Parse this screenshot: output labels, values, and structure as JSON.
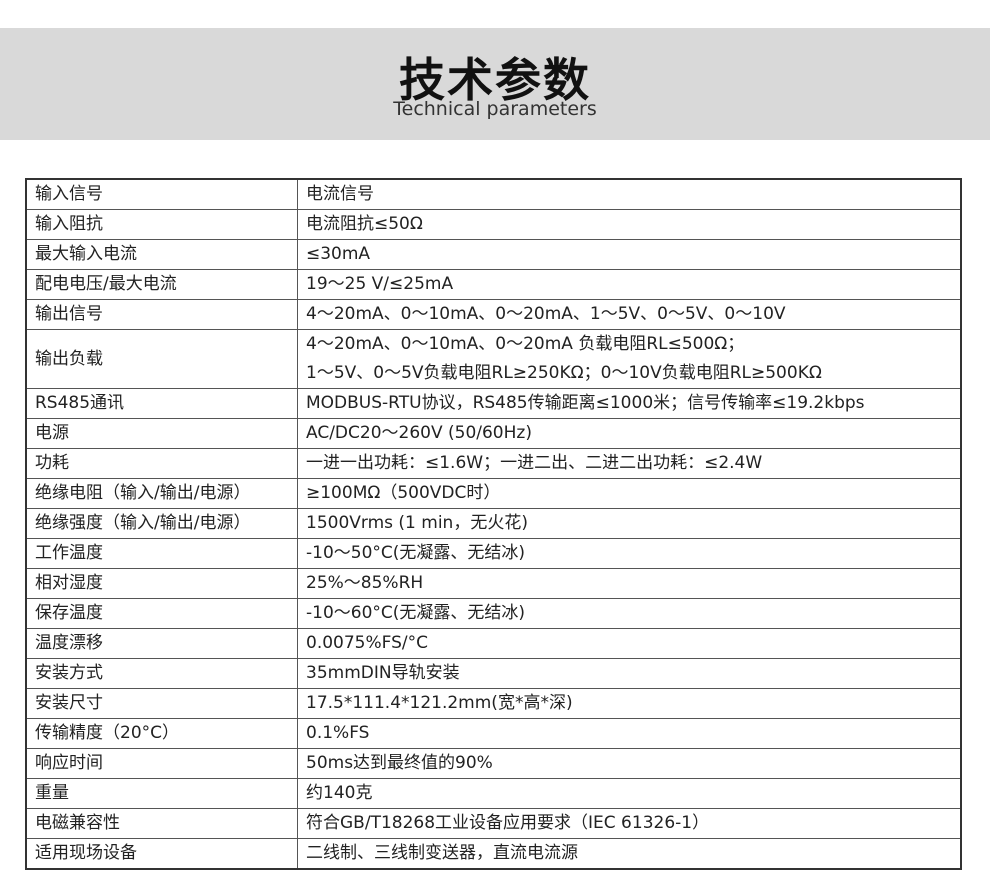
{
  "header": {
    "title": "技术参数",
    "subtitle": "Technical parameters"
  },
  "table": {
    "rows": [
      [
        "输入信号",
        "电流信号"
      ],
      [
        "输入阻抗",
        "电流阻抗≤50Ω"
      ],
      [
        "最大输入电流",
        "≤30mA"
      ],
      [
        "配电电压/最大电流",
        "19～25 V/≤25mA"
      ],
      [
        "输出信号",
        "4～20mA、0～10mA、0～20mA、1～5V、0～5V、0～10V"
      ],
      [
        "输出负载",
        [
          "4～20mA、0～10mA、0～20mA 负载电阻RL≤500Ω；",
          "1～5V、0～5V负载电阻RL≥250KΩ；0～10V负载电阻RL≥500KΩ"
        ]
      ],
      [
        "RS485通讯",
        "MODBUS-RTU协议，RS485传输距离≤1000米；信号传输率≤19.2kbps"
      ],
      [
        "电源",
        "AC/DC20～260V (50/60Hz)"
      ],
      [
        "功耗",
        "一进一出功耗：≤1.6W；一进二出、二进二出功耗：≤2.4W"
      ],
      [
        "绝缘电阻（输入/输出/电源）",
        "≥100MΩ（500VDC时）"
      ],
      [
        "绝缘强度（输入/输出/电源）",
        "1500Vrms (1 min，无火花)"
      ],
      [
        "工作温度",
        "-10～50°C(无凝露、无结冰)"
      ],
      [
        "相对湿度",
        "25%～85%RH"
      ],
      [
        "保存温度",
        "-10～60°C(无凝露、无结冰)"
      ],
      [
        "温度漂移",
        "0.0075%FS/°C"
      ],
      [
        "安装方式",
        "35mmDIN导轨安装"
      ],
      [
        "安装尺寸",
        "17.5*111.4*121.2mm(宽*高*深)"
      ],
      [
        "传输精度（20°C）",
        "0.1%FS"
      ],
      [
        "响应时间",
        "50ms达到最终值的90%"
      ],
      [
        "重量",
        "约140克"
      ],
      [
        "电磁兼容性",
        "符合GB/T18268工业设备应用要求（IEC 61326-1）"
      ],
      [
        "适用现场设备",
        "二线制、三线制变送器，直流电流源"
      ]
    ]
  }
}
